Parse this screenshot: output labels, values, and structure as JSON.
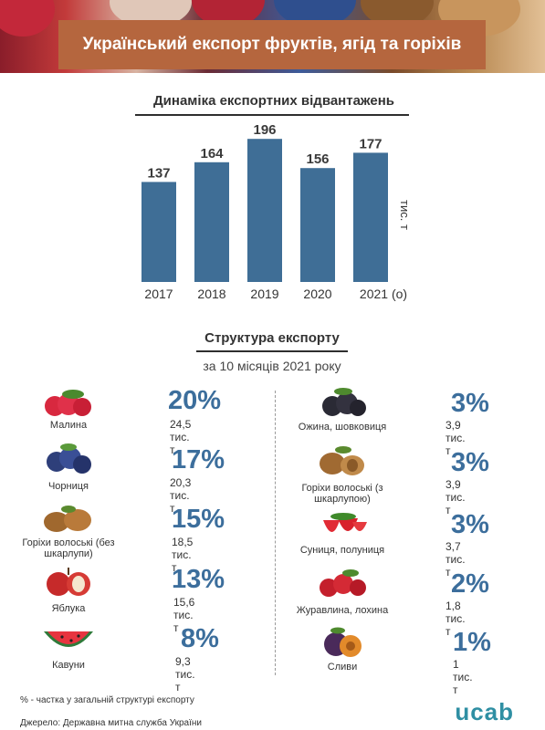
{
  "title": "Український експорт фруктів, ягід та горіхів",
  "chart_section_title": "Динаміка експортних відвантажень",
  "chart_data": {
    "type": "bar",
    "categories": [
      "2017",
      "2018",
      "2019",
      "2020",
      "2021 (о)"
    ],
    "values": [
      137,
      164,
      196,
      156,
      177
    ],
    "ylabel": "тис. т",
    "ylim": [
      0,
      200
    ],
    "color": "#3f6e96"
  },
  "structure": {
    "title": "Структура експорту",
    "subtitle": "за 10 місяців 2021 року",
    "left": [
      {
        "name": "Малина",
        "pct": "20%",
        "amount": "24,5 тис. т",
        "icon": "raspberry-icon"
      },
      {
        "name": "Чорниця",
        "pct": "17%",
        "amount": "20,3 тис. т",
        "icon": "blueberry-icon"
      },
      {
        "name": "Горіхи волоські (без шкарлупи)",
        "pct": "15%",
        "amount": "18,5 тис. т",
        "icon": "walnut-icon"
      },
      {
        "name": "Яблука",
        "pct": "13%",
        "amount": "15,6 тис. т",
        "icon": "apple-icon"
      },
      {
        "name": "Кавуни",
        "pct": "8%",
        "amount": "9,3 тис. т",
        "icon": "watermelon-icon"
      }
    ],
    "right": [
      {
        "name": "Ожина, шовковиця",
        "pct": "3%",
        "amount": "3,9 тис. т",
        "icon": "blackberry-icon"
      },
      {
        "name": "Горіхи волоські (з шкарлупою)",
        "pct": "3%",
        "amount": "3,9 тис. т",
        "icon": "walnut-shell-icon"
      },
      {
        "name": "Суниця, полуниця",
        "pct": "3%",
        "amount": "3,7 тис. т",
        "icon": "strawberry-icon"
      },
      {
        "name": "Журавлина, лохина",
        "pct": "2%",
        "amount": "1,8 тис. т",
        "icon": "cranberry-icon"
      },
      {
        "name": "Сливи",
        "pct": "1%",
        "amount": "1 тис. т",
        "icon": "plum-icon"
      }
    ]
  },
  "footnote": "% - частка у загальній структурі експорту",
  "source": "Джерело: Державна митна служба України",
  "logo": "ucab"
}
